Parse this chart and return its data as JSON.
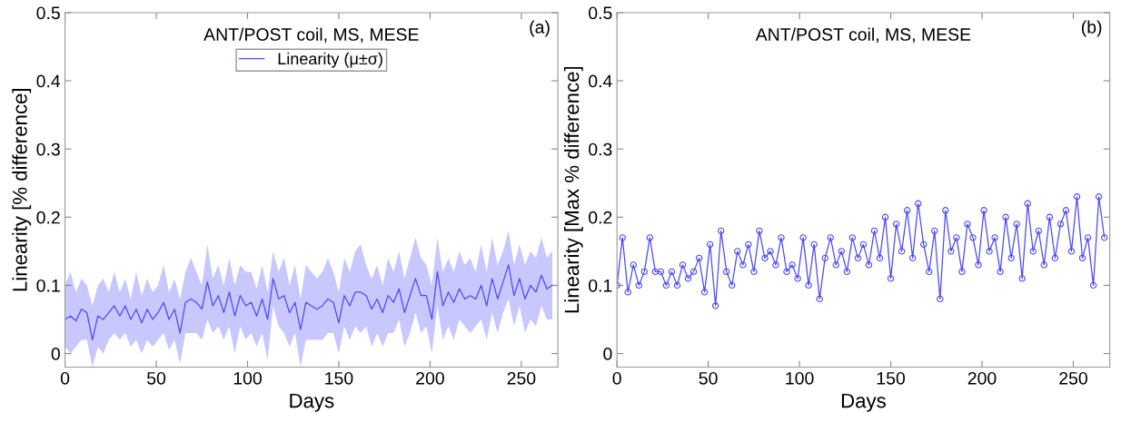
{
  "chart_data": [
    {
      "type": "line",
      "title": "ANT/POST coil, MS, MESE",
      "xlabel": "Days",
      "ylabel": "Linearity [% difference]",
      "annotations": [
        "(a)"
      ],
      "x": [
        0,
        3,
        6,
        9,
        12,
        15,
        18,
        21,
        24,
        27,
        30,
        33,
        36,
        39,
        42,
        45,
        48,
        51,
        54,
        57,
        60,
        63,
        66,
        69,
        72,
        75,
        78,
        81,
        84,
        87,
        90,
        93,
        96,
        99,
        102,
        105,
        108,
        111,
        114,
        117,
        120,
        123,
        126,
        129,
        132,
        135,
        138,
        141,
        144,
        147,
        150,
        153,
        156,
        159,
        162,
        165,
        168,
        171,
        174,
        177,
        180,
        183,
        186,
        189,
        192,
        195,
        198,
        201,
        204,
        207,
        210,
        213,
        216,
        219,
        222,
        225,
        228,
        231,
        234,
        237,
        240,
        243,
        246,
        249,
        252,
        255,
        258,
        261,
        264,
        267
      ],
      "series": [
        {
          "name": "Linearity (μ±σ)",
          "color": "#4a4aff",
          "values": [
            0.05,
            0.055,
            0.048,
            0.065,
            0.06,
            0.02,
            0.055,
            0.05,
            0.06,
            0.07,
            0.055,
            0.07,
            0.05,
            0.065,
            0.045,
            0.065,
            0.05,
            0.06,
            0.075,
            0.05,
            0.065,
            0.03,
            0.075,
            0.08,
            0.075,
            0.065,
            0.105,
            0.07,
            0.085,
            0.06,
            0.09,
            0.055,
            0.085,
            0.07,
            0.075,
            0.055,
            0.08,
            0.05,
            0.11,
            0.08,
            0.085,
            0.06,
            0.075,
            0.035,
            0.075,
            0.07,
            0.065,
            0.07,
            0.08,
            0.075,
            0.045,
            0.085,
            0.07,
            0.09,
            0.09,
            0.085,
            0.065,
            0.08,
            0.06,
            0.085,
            0.075,
            0.095,
            0.06,
            0.085,
            0.11,
            0.085,
            0.085,
            0.05,
            0.12,
            0.07,
            0.09,
            0.075,
            0.095,
            0.08,
            0.085,
            0.08,
            0.1,
            0.07,
            0.11,
            0.08,
            0.105,
            0.13,
            0.085,
            0.11,
            0.08,
            0.1,
            0.09,
            0.115,
            0.095,
            0.1
          ],
          "upper": [
            0.1,
            0.12,
            0.09,
            0.11,
            0.1,
            0.07,
            0.1,
            0.11,
            0.09,
            0.12,
            0.09,
            0.11,
            0.08,
            0.12,
            0.085,
            0.11,
            0.09,
            0.1,
            0.13,
            0.09,
            0.11,
            0.08,
            0.12,
            0.14,
            0.12,
            0.1,
            0.16,
            0.11,
            0.13,
            0.1,
            0.14,
            0.1,
            0.13,
            0.12,
            0.12,
            0.095,
            0.13,
            0.09,
            0.15,
            0.12,
            0.14,
            0.1,
            0.13,
            0.08,
            0.13,
            0.12,
            0.11,
            0.12,
            0.14,
            0.12,
            0.09,
            0.14,
            0.12,
            0.15,
            0.16,
            0.13,
            0.11,
            0.13,
            0.1,
            0.14,
            0.12,
            0.15,
            0.11,
            0.14,
            0.17,
            0.14,
            0.13,
            0.1,
            0.17,
            0.12,
            0.14,
            0.12,
            0.15,
            0.13,
            0.14,
            0.12,
            0.16,
            0.12,
            0.17,
            0.13,
            0.15,
            0.18,
            0.13,
            0.16,
            0.13,
            0.15,
            0.14,
            0.17,
            0.14,
            0.15
          ],
          "lower": [
            0.01,
            0.0,
            0.01,
            0.02,
            0.02,
            -0.02,
            0.01,
            0.0,
            0.02,
            0.03,
            0.02,
            0.03,
            0.01,
            0.02,
            0.0,
            0.02,
            0.01,
            0.02,
            0.03,
            0.005,
            0.02,
            -0.015,
            0.03,
            0.03,
            0.03,
            0.02,
            0.05,
            0.03,
            0.04,
            0.02,
            0.04,
            0.0,
            0.04,
            0.02,
            0.03,
            0.01,
            0.03,
            -0.01,
            0.07,
            0.04,
            0.03,
            0.01,
            0.03,
            -0.02,
            0.02,
            0.02,
            0.02,
            0.02,
            0.03,
            0.03,
            0.0,
            0.04,
            0.02,
            0.04,
            0.03,
            0.04,
            0.01,
            0.03,
            0.01,
            0.03,
            0.03,
            0.05,
            0.01,
            0.03,
            0.06,
            0.03,
            0.04,
            0.0,
            0.07,
            0.02,
            0.04,
            0.02,
            0.05,
            0.04,
            0.03,
            0.04,
            0.05,
            0.02,
            0.06,
            0.03,
            0.06,
            0.08,
            0.04,
            0.07,
            0.03,
            0.05,
            0.04,
            0.07,
            0.05,
            0.05
          ]
        }
      ],
      "xlim": [
        0,
        270
      ],
      "ylim": [
        -0.02,
        0.5
      ],
      "xticks": [
        0,
        50,
        100,
        150,
        200,
        250
      ],
      "yticks": [
        0,
        0.1,
        0.2,
        0.3,
        0.4,
        0.5
      ],
      "legend": "top",
      "marker": "none",
      "grid": false
    },
    {
      "type": "line",
      "title": "ANT/POST coil, MS, MESE",
      "xlabel": "Days",
      "ylabel": "Linearity [Max % difference]",
      "annotations": [
        "(b)"
      ],
      "x": [
        0,
        3,
        6,
        9,
        12,
        15,
        18,
        21,
        24,
        27,
        30,
        33,
        36,
        39,
        42,
        45,
        48,
        51,
        54,
        57,
        60,
        63,
        66,
        69,
        72,
        75,
        78,
        81,
        84,
        87,
        90,
        93,
        96,
        99,
        102,
        105,
        108,
        111,
        114,
        117,
        120,
        123,
        126,
        129,
        132,
        135,
        138,
        141,
        144,
        147,
        150,
        153,
        156,
        159,
        162,
        165,
        168,
        171,
        174,
        177,
        180,
        183,
        186,
        189,
        192,
        195,
        198,
        201,
        204,
        207,
        210,
        213,
        216,
        219,
        222,
        225,
        228,
        231,
        234,
        237,
        240,
        243,
        246,
        249,
        252,
        255,
        258,
        261,
        264,
        267
      ],
      "series": [
        {
          "color": "#4a4aff",
          "values": [
            0.1,
            0.17,
            0.09,
            0.13,
            0.1,
            0.12,
            0.17,
            0.12,
            0.12,
            0.1,
            0.12,
            0.1,
            0.13,
            0.11,
            0.12,
            0.14,
            0.09,
            0.16,
            0.07,
            0.18,
            0.12,
            0.1,
            0.15,
            0.13,
            0.16,
            0.12,
            0.18,
            0.14,
            0.15,
            0.13,
            0.17,
            0.12,
            0.13,
            0.11,
            0.17,
            0.1,
            0.16,
            0.08,
            0.14,
            0.17,
            0.13,
            0.15,
            0.12,
            0.17,
            0.14,
            0.16,
            0.13,
            0.18,
            0.14,
            0.2,
            0.11,
            0.19,
            0.15,
            0.21,
            0.14,
            0.22,
            0.16,
            0.12,
            0.18,
            0.08,
            0.21,
            0.15,
            0.17,
            0.12,
            0.19,
            0.17,
            0.13,
            0.21,
            0.15,
            0.17,
            0.12,
            0.2,
            0.14,
            0.19,
            0.11,
            0.22,
            0.15,
            0.18,
            0.13,
            0.2,
            0.14,
            0.19,
            0.21,
            0.15,
            0.23,
            0.14,
            0.17,
            0.1,
            0.23,
            0.17
          ]
        }
      ],
      "xlim": [
        0,
        270
      ],
      "ylim": [
        -0.02,
        0.5
      ],
      "xticks": [
        0,
        50,
        100,
        150,
        200,
        250
      ],
      "yticks": [
        0,
        0.1,
        0.2,
        0.3,
        0.4,
        0.5
      ],
      "marker": "circle",
      "grid": false
    }
  ]
}
